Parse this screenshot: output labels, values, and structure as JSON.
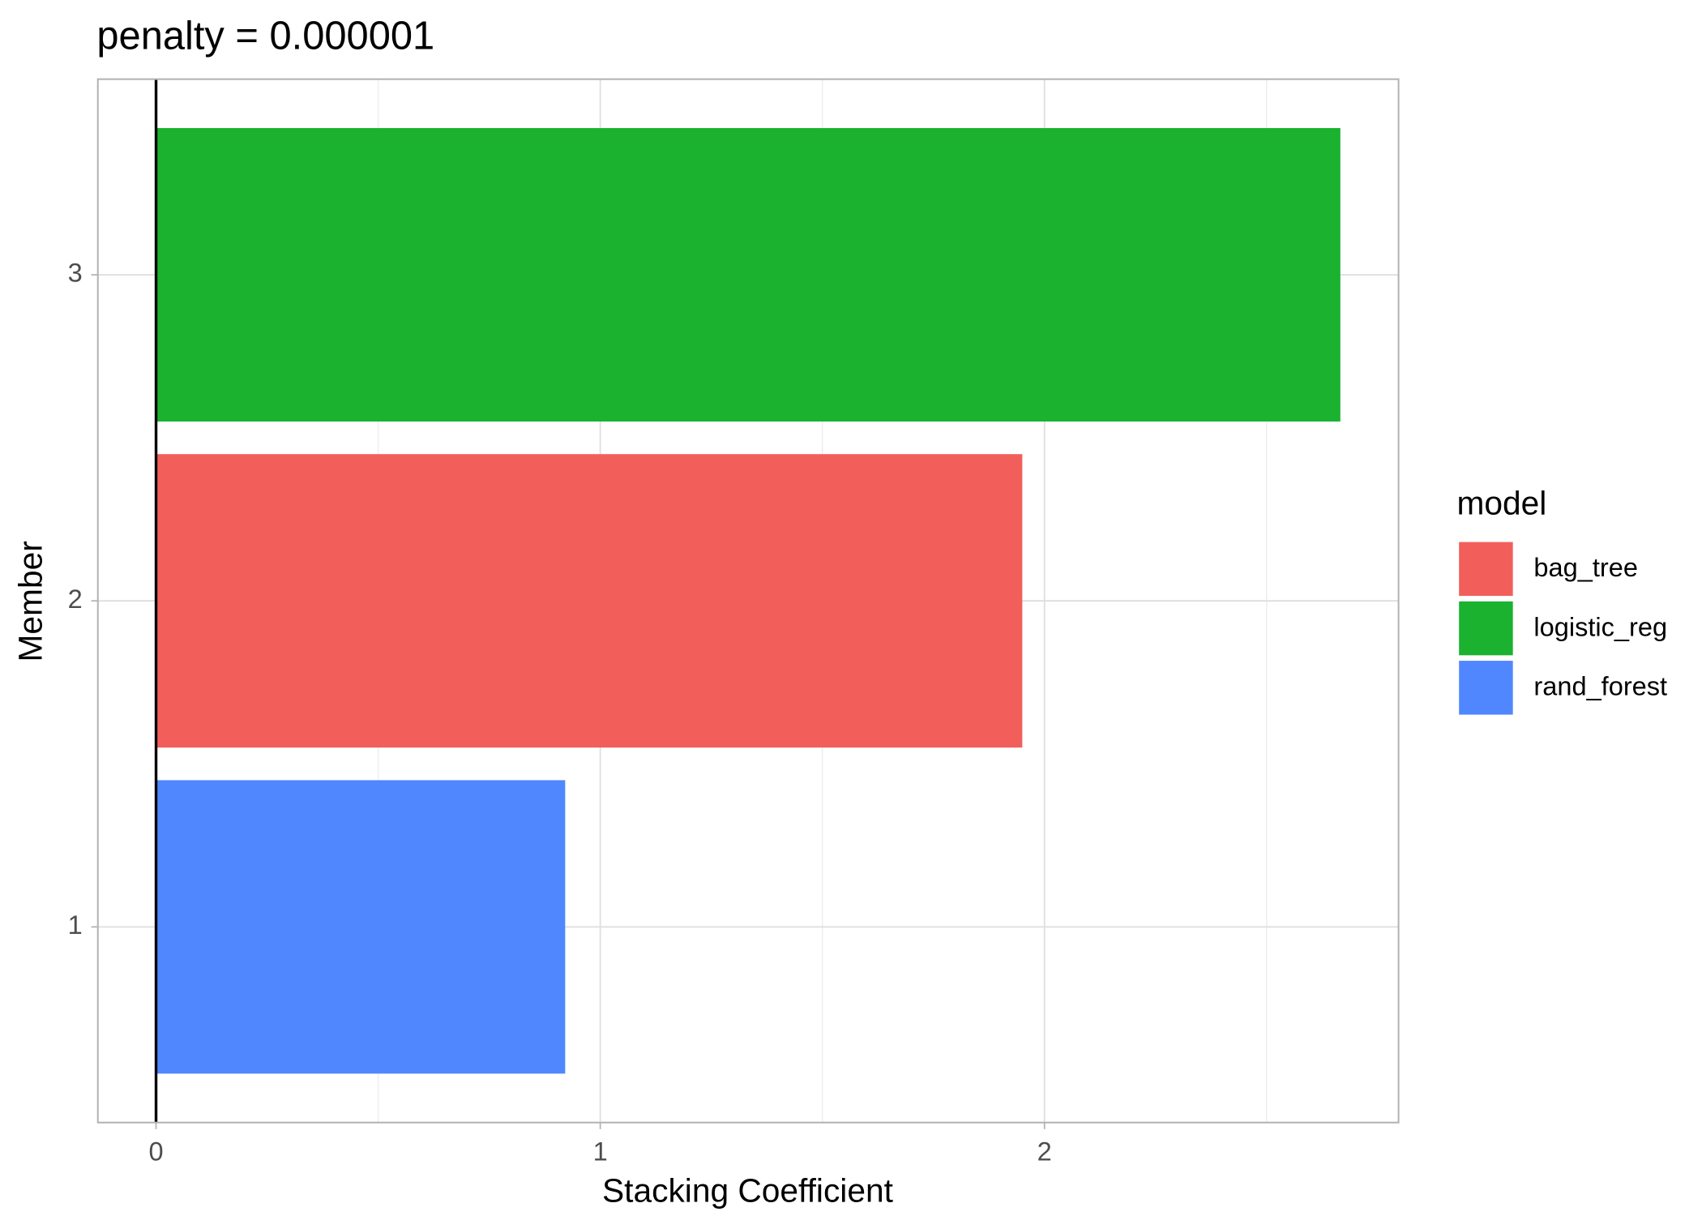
{
  "chart_data": {
    "type": "bar",
    "orientation": "horizontal",
    "title": "penalty = 0.000001",
    "x_label": "Stacking Coefficient",
    "y_label": "Member",
    "categories": [
      "1",
      "2",
      "3"
    ],
    "series": [
      {
        "name": "bag_tree",
        "color": "#f25f5a",
        "values": [
          null,
          1.95,
          null
        ]
      },
      {
        "name": "logistic_reg",
        "color": "#1ab22f",
        "values": [
          null,
          null,
          2.666
        ]
      },
      {
        "name": "rand_forest",
        "color": "#5087ff",
        "values": [
          0.921,
          null,
          null
        ]
      }
    ],
    "legend_title": "model",
    "xlim": [
      -0.131,
      2.797
    ],
    "xticks": [
      0,
      1,
      2
    ],
    "reference_line": 0,
    "grid": true
  }
}
